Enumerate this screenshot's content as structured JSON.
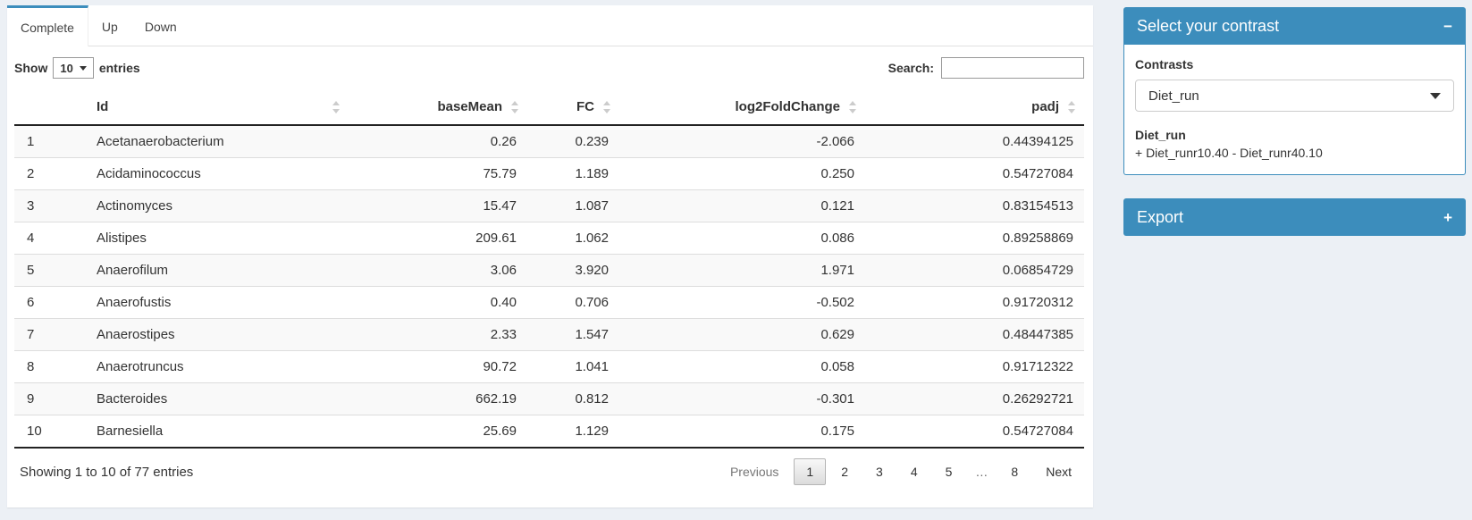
{
  "colors": {
    "primary": "#3c8dbc",
    "page_bg": "#ecf0f5"
  },
  "tabs": [
    {
      "label": "Complete",
      "active": true
    },
    {
      "label": "Up",
      "active": false
    },
    {
      "label": "Down",
      "active": false
    }
  ],
  "length_control": {
    "prefix": "Show",
    "selected": "10",
    "suffix": "entries"
  },
  "search": {
    "label": "Search:",
    "value": ""
  },
  "table": {
    "columns": [
      {
        "label": "",
        "key": "index",
        "align": "left",
        "sortable": false
      },
      {
        "label": "Id",
        "key": "id",
        "align": "left",
        "sortable": true
      },
      {
        "label": "baseMean",
        "key": "baseMean",
        "align": "right",
        "sortable": true
      },
      {
        "label": "FC",
        "key": "fc",
        "align": "right",
        "sortable": true
      },
      {
        "label": "log2FoldChange",
        "key": "log2fc",
        "align": "right",
        "sortable": true
      },
      {
        "label": "padj",
        "key": "padj",
        "align": "right",
        "sortable": true
      }
    ],
    "rows": [
      {
        "index": "1",
        "id": "Acetanaerobacterium",
        "baseMean": "0.26",
        "fc": "0.239",
        "log2fc": "-2.066",
        "padj": "0.44394125"
      },
      {
        "index": "2",
        "id": "Acidaminococcus",
        "baseMean": "75.79",
        "fc": "1.189",
        "log2fc": "0.250",
        "padj": "0.54727084"
      },
      {
        "index": "3",
        "id": "Actinomyces",
        "baseMean": "15.47",
        "fc": "1.087",
        "log2fc": "0.121",
        "padj": "0.83154513"
      },
      {
        "index": "4",
        "id": "Alistipes",
        "baseMean": "209.61",
        "fc": "1.062",
        "log2fc": "0.086",
        "padj": "0.89258869"
      },
      {
        "index": "5",
        "id": "Anaerofilum",
        "baseMean": "3.06",
        "fc": "3.920",
        "log2fc": "1.971",
        "padj": "0.06854729"
      },
      {
        "index": "6",
        "id": "Anaerofustis",
        "baseMean": "0.40",
        "fc": "0.706",
        "log2fc": "-0.502",
        "padj": "0.91720312"
      },
      {
        "index": "7",
        "id": "Anaerostipes",
        "baseMean": "2.33",
        "fc": "1.547",
        "log2fc": "0.629",
        "padj": "0.48447385"
      },
      {
        "index": "8",
        "id": "Anaerotruncus",
        "baseMean": "90.72",
        "fc": "1.041",
        "log2fc": "0.058",
        "padj": "0.91712322"
      },
      {
        "index": "9",
        "id": "Bacteroides",
        "baseMean": "662.19",
        "fc": "0.812",
        "log2fc": "-0.301",
        "padj": "0.26292721"
      },
      {
        "index": "10",
        "id": "Barnesiella",
        "baseMean": "25.69",
        "fc": "1.129",
        "log2fc": "0.175",
        "padj": "0.54727084"
      }
    ]
  },
  "footer": {
    "info": "Showing 1 to 10 of 77 entries",
    "pagination": [
      {
        "label": "Previous",
        "state": "disabled"
      },
      {
        "label": "1",
        "state": "active"
      },
      {
        "label": "2",
        "state": ""
      },
      {
        "label": "3",
        "state": ""
      },
      {
        "label": "4",
        "state": ""
      },
      {
        "label": "5",
        "state": ""
      },
      {
        "label": "…",
        "state": "ellipsis"
      },
      {
        "label": "8",
        "state": ""
      },
      {
        "label": "Next",
        "state": ""
      }
    ]
  },
  "contrast_box": {
    "title": "Select your contrast",
    "collapse_icon": "−",
    "label": "Contrasts",
    "selected": "Diet_run",
    "detail_title": "Diet_run",
    "detail_formula": "+ Diet_runr10.40 - Diet_runr40.10"
  },
  "export_box": {
    "title": "Export",
    "collapse_icon": "+"
  }
}
